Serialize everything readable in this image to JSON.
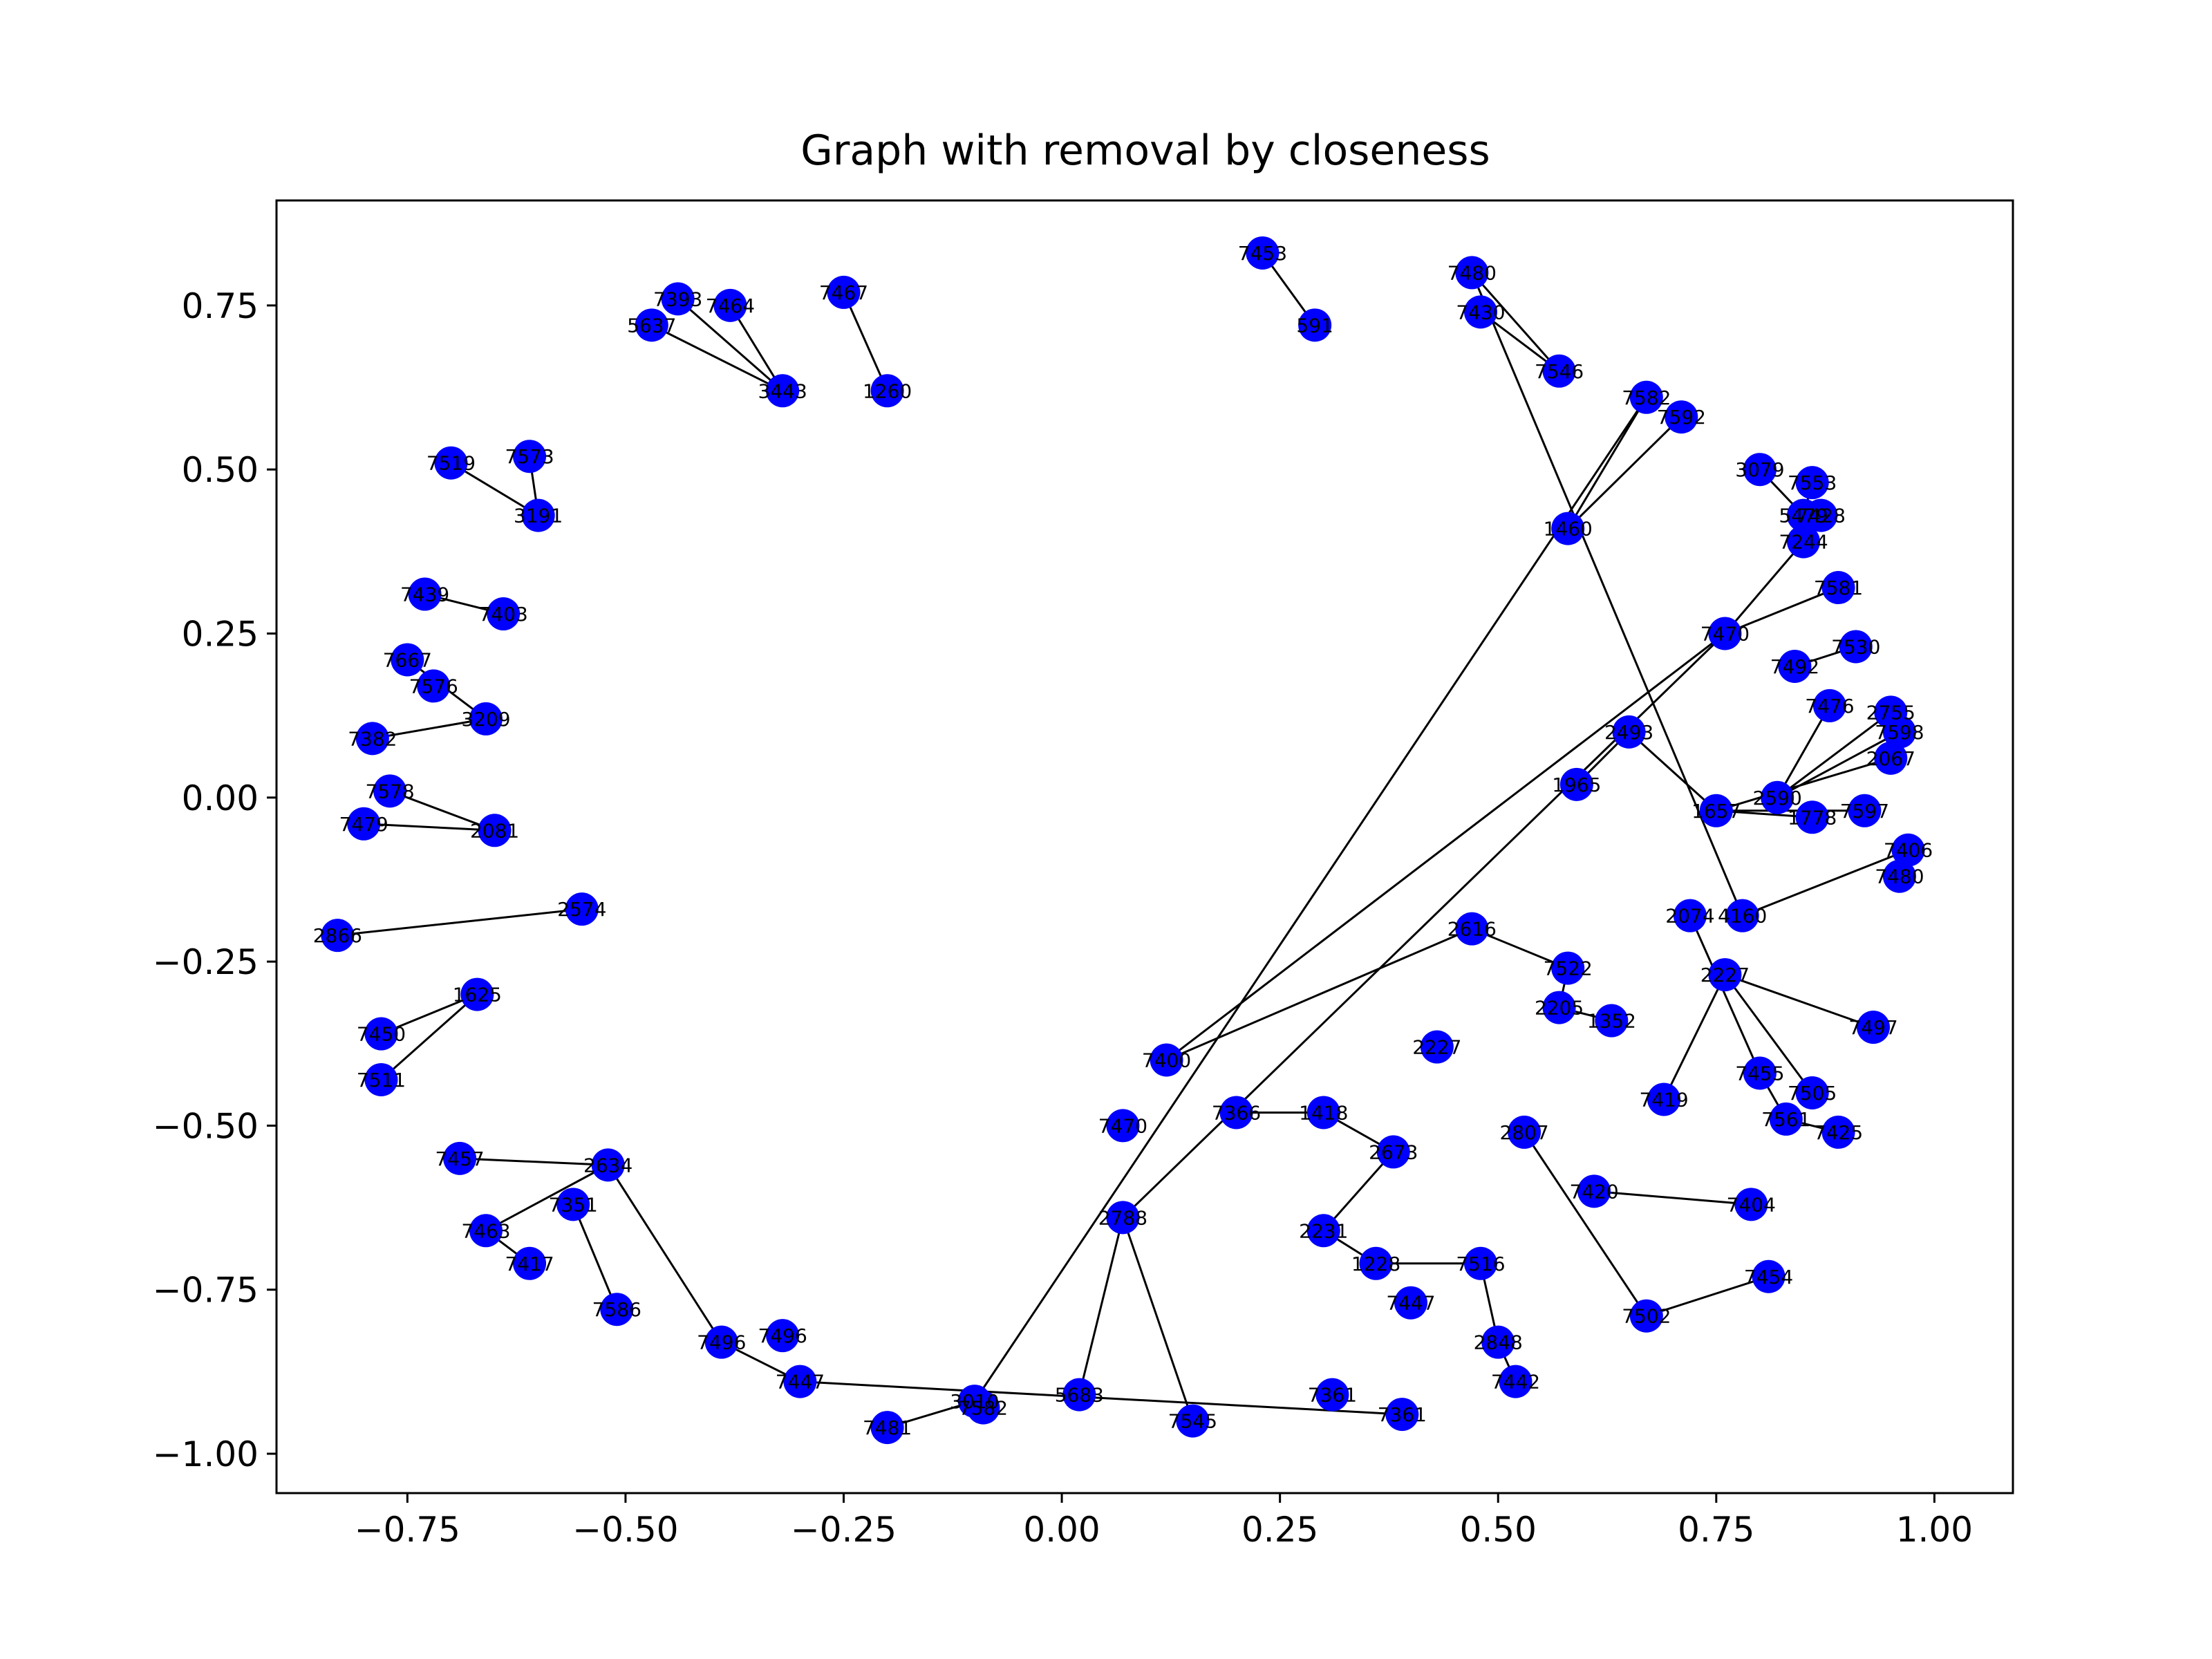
{
  "chart_data": {
    "type": "network",
    "title": "Graph with removal by closeness",
    "xlabel": "",
    "ylabel": "",
    "xlim": [
      -0.9,
      1.09
    ],
    "ylim": [
      -1.06,
      0.91
    ],
    "x_ticks": [
      -0.75,
      -0.5,
      -0.25,
      0.0,
      0.25,
      0.5,
      0.75,
      1.0
    ],
    "x_tick_labels": [
      "−0.75",
      "−0.50",
      "−0.25",
      "0.00",
      "0.25",
      "0.50",
      "0.75",
      "1.00"
    ],
    "y_ticks": [
      0.75,
      0.5,
      0.25,
      0.0,
      -0.25,
      -0.5,
      -0.75,
      -1.0
    ],
    "y_tick_labels": [
      "0.75",
      "0.50",
      "0.25",
      "0.00",
      "−0.25",
      "−0.50",
      "−0.75",
      "−1.00"
    ],
    "grid": false,
    "node_color": "#0000ff",
    "edge_color": "#000000",
    "nodes": [
      {
        "id": "7467",
        "x": -0.25,
        "y": 0.77
      },
      {
        "id": "7393",
        "x": -0.44,
        "y": 0.76
      },
      {
        "id": "7464",
        "x": -0.38,
        "y": 0.75
      },
      {
        "id": "5637",
        "x": -0.47,
        "y": 0.72
      },
      {
        "id": "7453",
        "x": 0.23,
        "y": 0.83
      },
      {
        "id": "7480",
        "x": 0.47,
        "y": 0.8
      },
      {
        "id": "7430",
        "x": 0.48,
        "y": 0.74
      },
      {
        "id": "7582",
        "x": 0.67,
        "y": 0.61
      },
      {
        "id": "7592",
        "x": 0.71,
        "y": 0.58
      },
      {
        "id": "3079",
        "x": 0.8,
        "y": 0.5
      },
      {
        "id": "7553",
        "x": 0.86,
        "y": 0.48
      },
      {
        "id": "7428",
        "x": 0.87,
        "y": 0.43
      },
      {
        "id": "7244",
        "x": 0.85,
        "y": 0.39
      },
      {
        "id": "7581",
        "x": 0.89,
        "y": 0.32
      },
      {
        "id": "7530",
        "x": 0.91,
        "y": 0.23
      },
      {
        "id": "7476",
        "x": 0.88,
        "y": 0.14
      },
      {
        "id": "2755",
        "x": 0.95,
        "y": 0.13
      },
      {
        "id": "7598",
        "x": 0.96,
        "y": 0.1
      },
      {
        "id": "2067",
        "x": 0.95,
        "y": 0.06
      },
      {
        "id": "7597",
        "x": 0.92,
        "y": -0.02
      },
      {
        "id": "1778",
        "x": 0.86,
        "y": -0.03
      },
      {
        "id": "7406",
        "x": 0.97,
        "y": -0.08
      },
      {
        "id": "7480",
        "x": 0.96,
        "y": -0.12
      },
      {
        "id": "7497",
        "x": 0.93,
        "y": -0.35
      },
      {
        "id": "7505",
        "x": 0.86,
        "y": -0.45
      },
      {
        "id": "7425",
        "x": 0.89,
        "y": -0.51
      },
      {
        "id": "7561",
        "x": 0.83,
        "y": -0.49
      },
      {
        "id": "7455",
        "x": 0.8,
        "y": -0.42
      },
      {
        "id": "7519",
        "x": -0.7,
        "y": 0.51
      },
      {
        "id": "7573",
        "x": -0.61,
        "y": 0.52
      },
      {
        "id": "7439",
        "x": -0.73,
        "y": 0.31
      },
      {
        "id": "7403",
        "x": -0.64,
        "y": 0.28
      },
      {
        "id": "7667",
        "x": -0.75,
        "y": 0.21
      },
      {
        "id": "7576",
        "x": -0.72,
        "y": 0.17
      },
      {
        "id": "7382",
        "x": -0.79,
        "y": 0.09
      },
      {
        "id": "7578",
        "x": -0.77,
        "y": 0.01
      },
      {
        "id": "7479",
        "x": -0.8,
        "y": -0.04
      },
      {
        "id": "2866",
        "x": -0.83,
        "y": -0.21
      },
      {
        "id": "7450",
        "x": -0.78,
        "y": -0.36
      },
      {
        "id": "7511",
        "x": -0.78,
        "y": -0.43
      },
      {
        "id": "7457",
        "x": -0.69,
        "y": -0.55
      },
      {
        "id": "7463",
        "x": -0.66,
        "y": -0.66
      },
      {
        "id": "7417",
        "x": -0.61,
        "y": -0.71
      },
      {
        "id": "7586",
        "x": -0.51,
        "y": -0.78
      },
      {
        "id": "7496",
        "x": -0.39,
        "y": -0.83
      },
      {
        "id": "7447",
        "x": -0.3,
        "y": -0.89
      },
      {
        "id": "7481",
        "x": -0.2,
        "y": -0.96
      },
      {
        "id": "7582",
        "x": -0.09,
        "y": -0.93
      },
      {
        "id": "5683",
        "x": 0.02,
        "y": -0.91
      },
      {
        "id": "7545",
        "x": 0.15,
        "y": -0.95
      },
      {
        "id": "7361",
        "x": 0.39,
        "y": -0.94
      },
      {
        "id": "7442",
        "x": 0.52,
        "y": -0.89
      },
      {
        "id": "7502",
        "x": 0.67,
        "y": -0.79
      },
      {
        "id": "7454",
        "x": 0.81,
        "y": -0.73
      },
      {
        "id": "7404",
        "x": 0.79,
        "y": -0.62
      },
      {
        "id": "7419",
        "x": 0.69,
        "y": -0.46
      },
      {
        "id": "1352",
        "x": 0.63,
        "y": -0.34
      },
      {
        "id": "2205",
        "x": 0.57,
        "y": -0.32
      },
      {
        "id": "7522",
        "x": 0.58,
        "y": -0.26
      },
      {
        "id": "1460",
        "x": 0.58,
        "y": 0.41
      },
      {
        "id": "7546",
        "x": 0.57,
        "y": 0.65
      },
      {
        "id": "5479",
        "x": 0.85,
        "y": 0.43
      },
      {
        "id": "1965",
        "x": 0.59,
        "y": 0.02
      },
      {
        "id": "2493",
        "x": 0.65,
        "y": 0.1
      },
      {
        "id": "1657",
        "x": 0.75,
        "y": -0.02
      },
      {
        "id": "2590",
        "x": 0.82,
        "y": 0.0
      },
      {
        "id": "2074",
        "x": 0.72,
        "y": -0.18
      },
      {
        "id": "4160",
        "x": 0.78,
        "y": -0.18
      },
      {
        "id": "2227",
        "x": 0.76,
        "y": -0.27
      },
      {
        "id": "7470",
        "x": 0.76,
        "y": 0.25
      },
      {
        "id": "7492",
        "x": 0.84,
        "y": 0.2
      },
      {
        "id": "591",
        "x": 0.29,
        "y": 0.72
      },
      {
        "id": "7366",
        "x": 0.2,
        "y": -0.48
      },
      {
        "id": "1418",
        "x": 0.3,
        "y": -0.48
      },
      {
        "id": "2673",
        "x": 0.38,
        "y": -0.54
      },
      {
        "id": "2231",
        "x": 0.3,
        "y": -0.66
      },
      {
        "id": "7516",
        "x": 0.48,
        "y": -0.71
      },
      {
        "id": "7447",
        "x": 0.4,
        "y": -0.77
      },
      {
        "id": "2848",
        "x": 0.5,
        "y": -0.83
      },
      {
        "id": "1228",
        "x": 0.36,
        "y": -0.71
      },
      {
        "id": "7361",
        "x": 0.31,
        "y": -0.91
      },
      {
        "id": "2634",
        "x": -0.52,
        "y": -0.56
      },
      {
        "id": "7351",
        "x": -0.56,
        "y": -0.62
      },
      {
        "id": "3209",
        "x": -0.66,
        "y": 0.12
      },
      {
        "id": "2081",
        "x": -0.65,
        "y": -0.05
      },
      {
        "id": "2574",
        "x": -0.55,
        "y": -0.17
      },
      {
        "id": "1625",
        "x": -0.67,
        "y": -0.3
      },
      {
        "id": "3191",
        "x": -0.6,
        "y": 0.43
      },
      {
        "id": "3443",
        "x": -0.32,
        "y": 0.62
      },
      {
        "id": "1260",
        "x": -0.2,
        "y": 0.62
      },
      {
        "id": "2788",
        "x": 0.07,
        "y": -0.64
      },
      {
        "id": "7470",
        "x": 0.07,
        "y": -0.5
      },
      {
        "id": "7400",
        "x": 0.12,
        "y": -0.4
      },
      {
        "id": "2616",
        "x": 0.47,
        "y": -0.2
      },
      {
        "id": "2227",
        "x": 0.43,
        "y": -0.38
      },
      {
        "id": "2807",
        "x": 0.53,
        "y": -0.51
      },
      {
        "id": "7420",
        "x": 0.61,
        "y": -0.6
      },
      {
        "id": "7496",
        "x": -0.32,
        "y": -0.82
      },
      {
        "id": "3010",
        "x": -0.1,
        "y": -0.92
      }
    ],
    "edges": [
      [
        "2866",
        "2574"
      ],
      [
        "7450",
        "1625"
      ],
      [
        "7511",
        "1625"
      ],
      [
        "7382",
        "3209"
      ],
      [
        "7667",
        "3209"
      ],
      [
        "7479",
        "2081"
      ],
      [
        "7578",
        "2081"
      ],
      [
        "7439",
        "7403"
      ],
      [
        "7519",
        "3191"
      ],
      [
        "7573",
        "3191"
      ],
      [
        "5637",
        "3443"
      ],
      [
        "7393",
        "3443"
      ],
      [
        "7464",
        "3443"
      ],
      [
        "7467",
        "1260"
      ],
      [
        "7453",
        "591"
      ],
      [
        "7480",
        "7546"
      ],
      [
        "7430",
        "7546"
      ],
      [
        "7582",
        "1460"
      ],
      [
        "7592",
        "1460"
      ],
      [
        "3079",
        "5479"
      ],
      [
        "7553",
        "5479"
      ],
      [
        "7428",
        "7244"
      ],
      [
        "7244",
        "7470"
      ],
      [
        "7581",
        "7470"
      ],
      [
        "7530",
        "7492"
      ],
      [
        "7476",
        "2590"
      ],
      [
        "2755",
        "2590"
      ],
      [
        "7598",
        "2590"
      ],
      [
        "2067",
        "1657"
      ],
      [
        "7597",
        "1657"
      ],
      [
        "1778",
        "1657"
      ],
      [
        "7406",
        "4160"
      ],
      [
        "7480",
        "4160"
      ],
      [
        "7497",
        "2227"
      ],
      [
        "7505",
        "2227"
      ],
      [
        "7425",
        "7561"
      ],
      [
        "7561",
        "7455"
      ],
      [
        "7455",
        "2074"
      ],
      [
        "7404",
        "7420"
      ],
      [
        "7454",
        "7502"
      ],
      [
        "7502",
        "2807"
      ],
      [
        "7442",
        "2848"
      ],
      [
        "7361",
        "7447"
      ],
      [
        "7545",
        "2788"
      ],
      [
        "5683",
        "2788"
      ],
      [
        "7582",
        "3010"
      ],
      [
        "7481",
        "3010"
      ],
      [
        "7447",
        "7496"
      ],
      [
        "7496",
        "2634"
      ],
      [
        "7586",
        "7351"
      ],
      [
        "7417",
        "7463"
      ],
      [
        "7463",
        "2634"
      ],
      [
        "7457",
        "2634"
      ],
      [
        "7419",
        "2227"
      ],
      [
        "1352",
        "2205"
      ],
      [
        "2205",
        "7522"
      ],
      [
        "7522",
        "2616"
      ],
      [
        "1965",
        "2493"
      ],
      [
        "2493",
        "1657"
      ],
      [
        "7366",
        "1418"
      ],
      [
        "1418",
        "2673"
      ],
      [
        "2673",
        "2231"
      ],
      [
        "2231",
        "1228"
      ],
      [
        "1228",
        "7516"
      ],
      [
        "7516",
        "2848"
      ],
      [
        "2788",
        "7470"
      ],
      [
        "7470",
        "7400"
      ],
      [
        "7400",
        "2616"
      ]
    ]
  }
}
